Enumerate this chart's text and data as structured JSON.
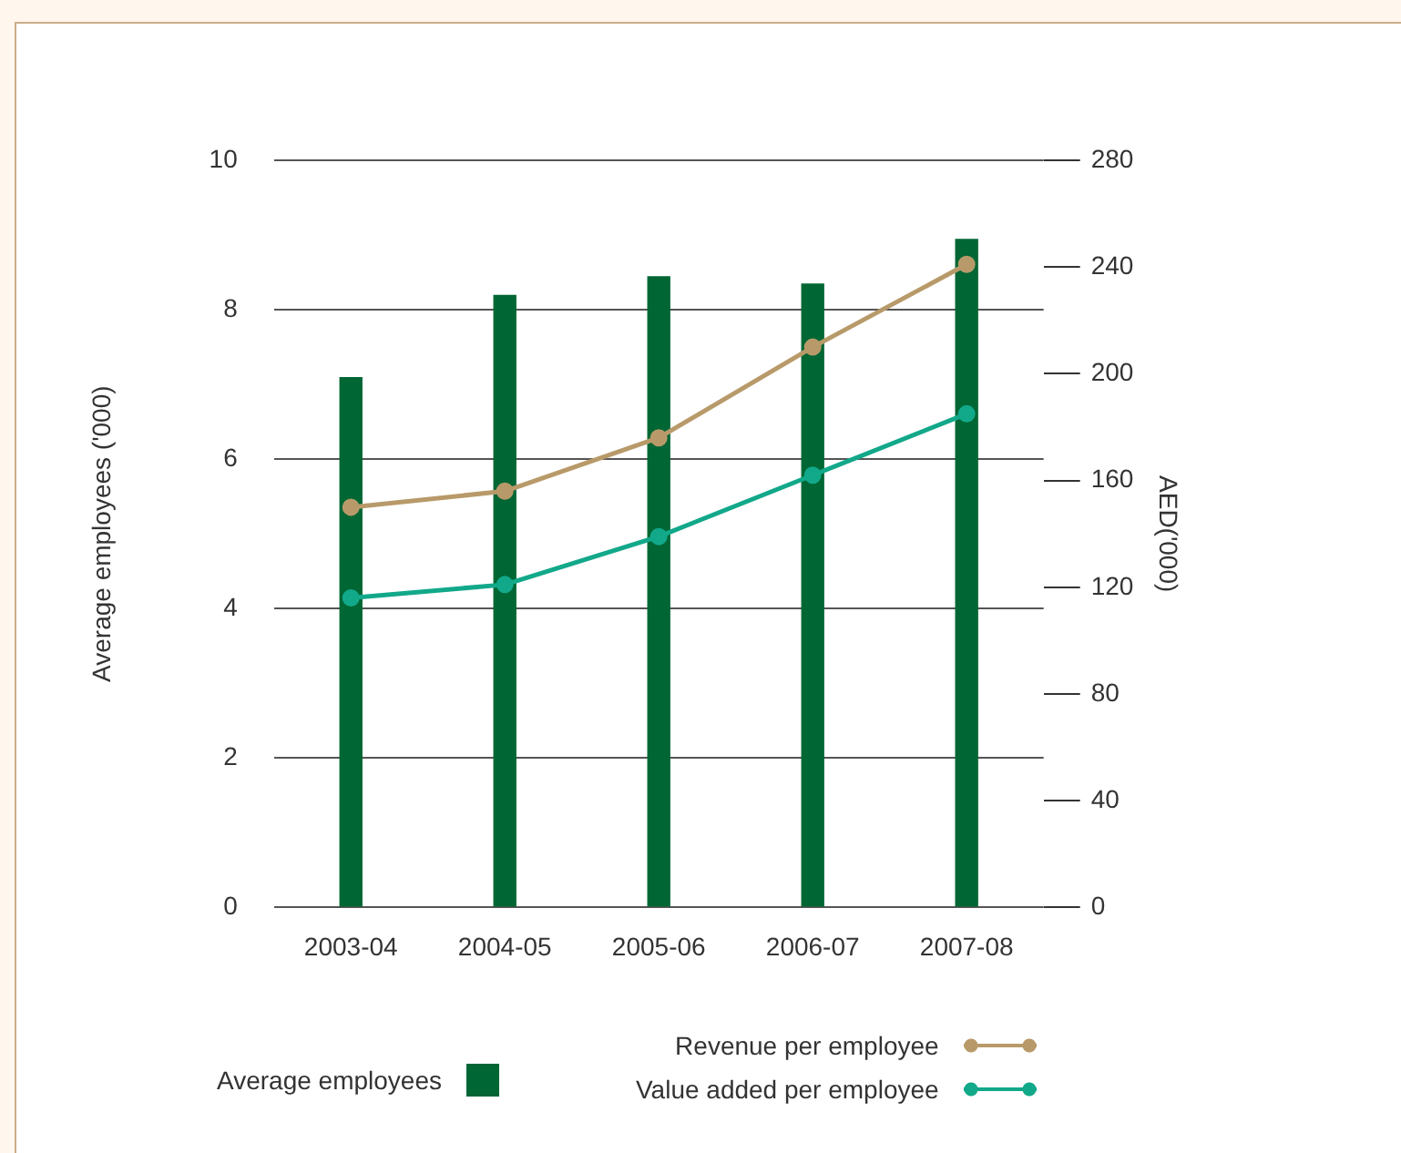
{
  "chart_data": {
    "type": "bar",
    "ylabel": "Average employees ('000)",
    "y2label": "AED('000)",
    "categories": [
      "2003-04",
      "2004-05",
      "2005-06",
      "2006-07",
      "2007-08"
    ],
    "series": [
      {
        "name": "Average employees",
        "color": "#006633",
        "values": [
          7.1,
          8.2,
          8.45,
          8.35,
          8.95
        ]
      },
      {
        "name": "Revenue per employee",
        "type": "line",
        "axis": "y2",
        "color": "#b89a6a",
        "values": [
          150,
          156,
          176,
          210,
          241
        ]
      },
      {
        "name": "Value added per employee",
        "type": "line",
        "axis": "y2",
        "color": "#12a88a",
        "values": [
          116,
          121,
          139,
          162,
          185
        ]
      }
    ],
    "ylim": [
      0,
      10
    ],
    "yticks": [
      0,
      2,
      4,
      6,
      8,
      10
    ],
    "y2lim": [
      0,
      280
    ],
    "y2ticks": [
      0,
      40,
      80,
      120,
      160,
      200,
      240,
      280
    ],
    "grid": "y",
    "legend": "bottom",
    "marker": "circle",
    "line_style": "solid"
  }
}
